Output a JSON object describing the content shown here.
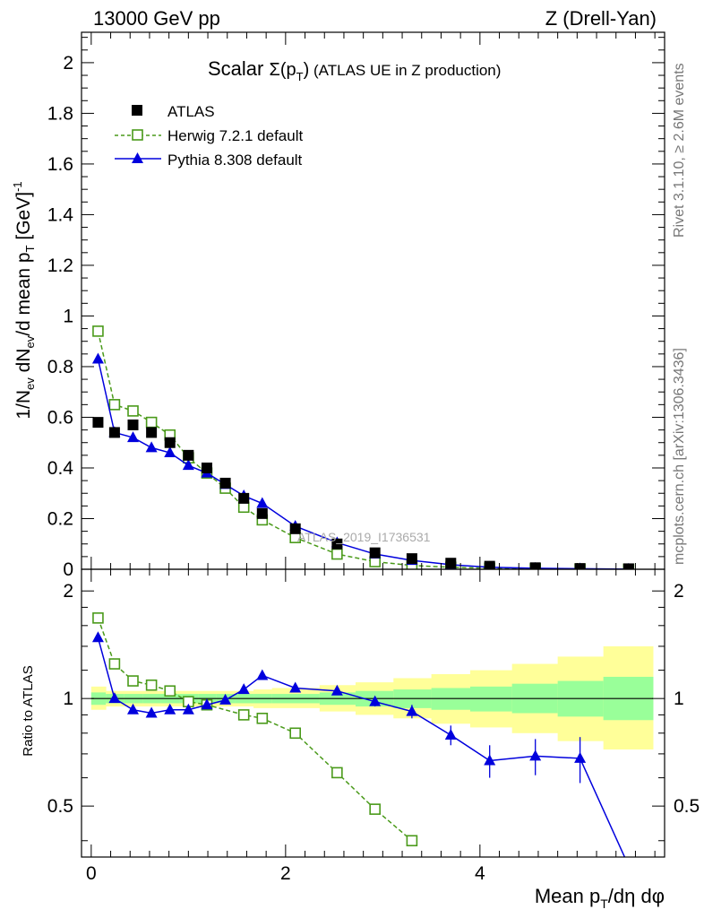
{
  "header": {
    "left": "13000 GeV pp",
    "right": "Z (Drell-Yan)"
  },
  "plot_title": {
    "prefix": "Scalar ",
    "sigma": "Σ(p",
    "sub": "T",
    "close": ")",
    "rest": " (ATLAS UE in Z production)"
  },
  "side_labels": {
    "rivet": "Rivet 3.1.10, ≥ 2.6M events",
    "mcplots": "mcplots.cern.ch [arXiv:1306.3436]"
  },
  "watermark": "ATLAS_2019_I1736531",
  "colors": {
    "data": "#000000",
    "herwig": "#4a9a1a",
    "pythia": "#0000dd",
    "band_inner": "#99ff99",
    "band_outer": "#ffff99"
  },
  "chart_data": [
    {
      "type": "scatter",
      "panel": "main",
      "xlim": [
        -0.1,
        5.9
      ],
      "ylim": [
        0,
        2.12
      ],
      "ylabel": "1/N_ev dN_ev/d mean p_T [GeV]^-1",
      "y_ticks": [
        "0",
        "0.2",
        "0.4",
        "0.6",
        "0.8",
        "1",
        "1.2",
        "1.4",
        "1.6",
        "1.8",
        "2"
      ],
      "legend_position": "top-left",
      "x": [
        0.07,
        0.24,
        0.43,
        0.62,
        0.81,
        1.0,
        1.19,
        1.38,
        1.57,
        1.76,
        2.1,
        2.53,
        2.92,
        3.3,
        3.7,
        4.1,
        4.57,
        5.03,
        5.53
      ],
      "series": [
        {
          "name": "ATLAS",
          "style": "data",
          "values": [
            0.58,
            0.54,
            0.57,
            0.54,
            0.5,
            0.45,
            0.4,
            0.34,
            0.28,
            0.22,
            0.16,
            0.1,
            0.065,
            0.042,
            0.024,
            0.012,
            0.006,
            0.003,
            0.002
          ]
        },
        {
          "name": "Herwig 7.2.1 default",
          "style": "herwig",
          "values": [
            0.94,
            0.65,
            0.625,
            0.58,
            0.53,
            0.44,
            0.38,
            0.32,
            0.245,
            0.195,
            0.125,
            0.06,
            0.03,
            0.015,
            0.008,
            0.004,
            0.002,
            0.001,
            0.0005
          ]
        },
        {
          "name": "Pythia 8.308 default",
          "style": "pythia",
          "values": [
            0.83,
            0.54,
            0.52,
            0.48,
            0.46,
            0.41,
            0.38,
            0.335,
            0.29,
            0.26,
            0.17,
            0.105,
            0.06,
            0.035,
            0.018,
            0.008,
            0.004,
            0.002,
            0.0005
          ]
        }
      ]
    },
    {
      "type": "line",
      "panel": "ratio",
      "xlim": [
        -0.1,
        5.9
      ],
      "ylim": [
        0.36,
        2.3
      ],
      "log_scale_y": true,
      "xlabel": "Mean p_T/dη dφ",
      "ylabel": "Ratio to ATLAS",
      "x_ticks": [
        "0",
        "2",
        "4"
      ],
      "y_ticks": [
        "0.5",
        "1",
        "2"
      ],
      "band_edges": [
        0,
        0.15,
        0.34,
        0.53,
        0.72,
        0.91,
        1.1,
        1.29,
        1.48,
        1.67,
        1.86,
        2.35,
        2.72,
        3.11,
        3.5,
        3.9,
        4.33,
        4.8,
        5.27,
        5.78
      ],
      "band_inner_lo": [
        0.96,
        0.97,
        0.97,
        0.97,
        0.97,
        0.97,
        0.97,
        0.97,
        0.97,
        0.97,
        0.97,
        0.96,
        0.95,
        0.94,
        0.93,
        0.92,
        0.91,
        0.89,
        0.87
      ],
      "band_inner_hi": [
        1.04,
        1.03,
        1.03,
        1.03,
        1.03,
        1.03,
        1.03,
        1.03,
        1.03,
        1.03,
        1.03,
        1.04,
        1.05,
        1.06,
        1.07,
        1.08,
        1.1,
        1.12,
        1.15
      ],
      "band_outer_lo": [
        0.93,
        0.95,
        0.95,
        0.95,
        0.95,
        0.95,
        0.95,
        0.95,
        0.95,
        0.94,
        0.94,
        0.92,
        0.9,
        0.88,
        0.85,
        0.83,
        0.8,
        0.76,
        0.72
      ],
      "band_outer_hi": [
        1.08,
        1.05,
        1.05,
        1.05,
        1.05,
        1.05,
        1.05,
        1.05,
        1.05,
        1.06,
        1.07,
        1.09,
        1.11,
        1.14,
        1.17,
        1.2,
        1.25,
        1.31,
        1.4
      ],
      "series": [
        {
          "name": "Herwig 7.2.1 default",
          "style": "herwig",
          "x": [
            0.07,
            0.24,
            0.43,
            0.62,
            0.81,
            1.0,
            1.19,
            1.57,
            1.76,
            2.1,
            2.53,
            2.92,
            3.3
          ],
          "values": [
            1.68,
            1.25,
            1.12,
            1.09,
            1.05,
            0.98,
            0.96,
            0.9,
            0.88,
            0.8,
            0.62,
            0.49,
            0.4
          ],
          "errors": [
            0,
            0,
            0,
            0,
            0,
            0,
            0,
            0,
            0,
            0,
            0,
            0,
            0
          ]
        },
        {
          "name": "Pythia 8.308 default",
          "style": "pythia",
          "x": [
            0.07,
            0.24,
            0.43,
            0.62,
            0.81,
            1.0,
            1.19,
            1.38,
            1.57,
            1.76,
            2.1,
            2.53,
            2.92,
            3.3,
            3.7,
            4.1,
            4.57,
            5.03,
            5.53
          ],
          "values": [
            1.48,
            1.0,
            0.93,
            0.91,
            0.93,
            0.93,
            0.96,
            0.99,
            1.06,
            1.16,
            1.07,
            1.05,
            0.98,
            0.92,
            0.79,
            0.67,
            0.69,
            0.68,
            0.34
          ],
          "errors": [
            0,
            0,
            0,
            0,
            0,
            0,
            0.015,
            0.015,
            0.02,
            0.025,
            0.02,
            0.02,
            0.03,
            0.04,
            0.05,
            0.07,
            0.08,
            0.1,
            0
          ]
        }
      ]
    }
  ]
}
